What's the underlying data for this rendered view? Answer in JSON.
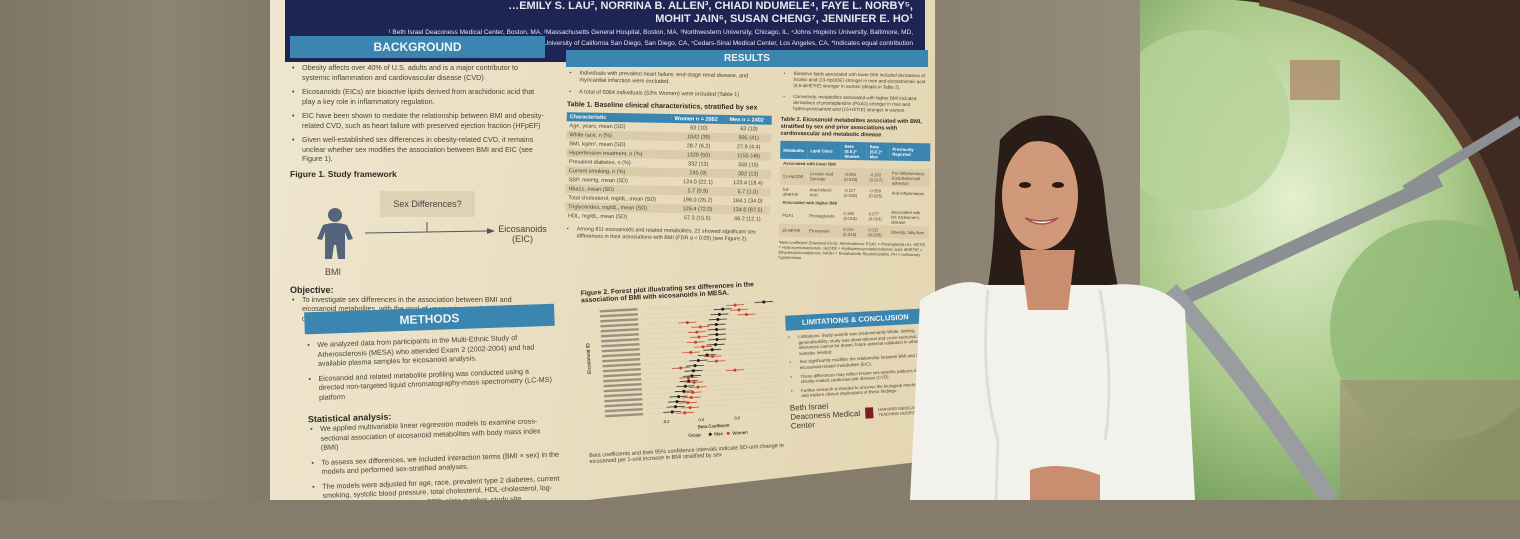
{
  "header": {
    "authors_line1": "…EMILY S. LAU², NORRINA B. ALLEN³, CHIADI NDUMELE⁴, FAYE L. NORBY⁵,",
    "authors_line2": "MOHIT JAIN⁶, SUSAN CHENG⁷, JENNIFER E. HO¹",
    "affil1": "¹ Beth Israel Deaconess Medical Center, Boston, MA, ²Massachusetts General Hospital, Boston, MA, ³Northwestern University, Chicago, IL, ⁴Johns Hopkins University, Baltimore, MD,",
    "affil2": "⁵University of Minnesota, Minneapolis, MN, ⁶University of California San Diego, San Diego, CA, ⁷Cedars-Sinai Medical Center, Los Angeles, CA, *Indicates equal contribution"
  },
  "background": {
    "title": "BACKGROUND",
    "bullets": [
      "Obesity affects over 40% of U.S. adults and is a major contributor to systemic inflammation and cardiovascular disease (CVD)",
      "Eicosanoids (EICs) are bioactive lipids derived from arachidonic acid that play a key role in inflammatory regulation.",
      "EIC have been shown to mediate the relationship between BMI and obesity-related CVD, such as heart failure with preserved ejection fraction (HFpEF)",
      "Given well-established sex differences in obesity-related CVD, it remains unclear whether sex modifies the association between BMI and EIC (see Figure 1)."
    ],
    "figure1_title": "Figure 1. Study framework",
    "figure1_box": "Sex Differences?",
    "figure1_left": "BMI",
    "figure1_right": "Eicosanoids (EIC)",
    "objective_title": "Objective:",
    "objective": "To investigate sex differences in the association between BMI and eicosanoid metabolites, with the goal of uncovering mechanisms driving clinical sex differences observed in obesity-associated CVD"
  },
  "methods": {
    "title": "METHODS",
    "bullets": [
      "We analyzed data from participants in the Multi-Ethnic Study of Atherosclerosis (MESA) who attended Exam 2 (2002-2004) and had available plasma samples for eicosanoid analysis.",
      "Eicosanoid and related metabolite profiling was conducted using a directed non-targeted liquid chromatography-mass spectrometry (LC-MS) platform"
    ],
    "stats_title": "Statistical analysis:",
    "stats_bullets": [
      "We applied multivariable linear regression models to examine cross-sectional association of eicosanoid metabolites with body mass index (BMI)",
      "To assess sex differences, we included interaction terms (BMI × sex) in the models and performed sex-stratified analyses.",
      "The models were adjusted for age, race, prevalent type 2 diabetes, current smoking, systolic blood pressure, total cholesterol, HDL-cholesterol, log-transformed triglyceride levels, eGFR, plate number, study site, hypertension medication use, and statin use",
      "…considered significant at FDR q-value"
    ]
  },
  "results": {
    "title": "RESULTS",
    "bullets": [
      "Individuals with prevalent heart failure, end-stage renal disease, and myocardial infarction were excluded.",
      "A total of 5064 individuals (53% Women) were included (Table 1)"
    ],
    "table1_title": "Table 1. Baseline clinical characteristics, stratified by sex",
    "table1_headers": [
      "Characteristic",
      "Women n = 2662",
      "Men n = 2402"
    ],
    "table1_rows": [
      [
        "Age, years, mean (SD)",
        "63 (10)",
        "63 (10)"
      ],
      [
        "White race, n (%)",
        "1042 (39)",
        "995 (41)"
      ],
      [
        "BMI, kg/m², mean (SD)",
        "28.7 (6.2)",
        "27.9 (4.4)"
      ],
      [
        "Hypertension treatment, n (%)",
        "1320 (50)",
        "1155 (48)"
      ],
      [
        "Prevalent diabetes, n (%)",
        "332 (13)",
        "358 (15)"
      ],
      [
        "Current smoking, n (%)",
        "245 (9)",
        "302 (13)"
      ],
      [
        "SBP, mmHg, mean (SD)",
        "124.0 (22.1)",
        "123.4 (18.4)"
      ],
      [
        "Hba1c, mean (SD)",
        "5.7 (0.9)",
        "5.7 (1.0)"
      ],
      [
        "Total cholesterol, mg/dL, mean (SD)",
        "198.0 (35.2)",
        "184.1 (34.0)"
      ],
      [
        "Triglycerides, mg/dL, mean (SD)",
        "126.4 (72.0)",
        "134.0 (87.5)"
      ],
      [
        "HDL, mg/dL, mean (SD)",
        "57.3 (15.5)",
        "46.2 (12.1)"
      ]
    ],
    "among": "Among 811 eicosanoids and related metabolites, 22 showed significant sex differences in their associations with BMI (FDR q < 0.05) (see Figure 2).",
    "figure2_title": "Figure 2. Forest plot illustrating sex differences in the association of BMI with eicosanoids in MESA.",
    "figure2_ylabel": "Eicosanoid ID",
    "figure2_xlabel": "Beta Coefficient",
    "figure2_legend": [
      "Group",
      "Men",
      "Women"
    ],
    "figure2_ticks": [
      "-0.2",
      "0.0",
      "0.2"
    ],
    "forest_men": [
      0.38,
      0.15,
      0.13,
      0.12,
      0.11,
      0.11,
      0.11,
      0.11,
      0.1,
      0.08,
      0.05,
      0.0,
      -0.02,
      -0.03,
      -0.04,
      -0.06,
      -0.08,
      -0.09,
      -0.12,
      -0.13,
      -0.14,
      -0.16
    ],
    "forest_women": [
      0.22,
      0.24,
      0.28,
      -0.05,
      0.02,
      0.0,
      0.01,
      -0.01,
      0.03,
      -0.04,
      0.08,
      0.1,
      -0.1,
      0.2,
      -0.06,
      -0.03,
      -0.01,
      -0.04,
      -0.05,
      -0.07,
      -0.06,
      -0.09
    ],
    "men_color": "#1a1a1a",
    "women_color": "#c8402c",
    "figure2_caption": "Beta coefficients and their 95% confidence intervals indicate SD-unit change in eicosanoid per 1-unit increase in BMI stratified by sex"
  },
  "right": {
    "bullets": [
      "Bioactive lipids associated with lower BMI included derivatives of linoleic acid (13-HpODE) stronger in men and eicosatrienoic acid (5,6-diHETrE) stronger in women (details in Table 2).",
      "Conversely, metabolites associated with higher BMI included derivatives of prostaglandins (PGA1) stronger in men and hydroxyeicosanoid acid (15-HETrE) stronger in women."
    ],
    "table2_title": "Table 2. Eicosanoid metabolites associated with BMI, stratified by sex and prior associations with cardiovascular and metabolic disease",
    "table2_headers": [
      "Metabolite",
      "Lipid Class",
      "Beta (S.E.)* Women",
      "Beta (S.E.)* Men",
      "Previously Reported"
    ],
    "group_lower": "Associated with lower BMI",
    "group_higher": "Associated with higher BMI",
    "table2_lower": [
      [
        "13-HpODE",
        "Linoleic Acid Derivate",
        "-0.050 (0.018)",
        "-0.202 (0.027)",
        "Pro-inflammatory; Endothelial cell adhesion"
      ],
      [
        "5,6-diHETrE",
        "Arachidonic Acid",
        "-0.117 (0.018)",
        "-0.059 (0.025)",
        "Anti-inflammatory"
      ]
    ],
    "table2_higher": [
      [
        "PGA1",
        "Prostaglandin",
        "0.188 (0.018)",
        "0.277 (0.024)",
        "Associated with MI; Alzheimer's disease"
      ],
      [
        "15-HETrE",
        "Eicosanoid",
        "0.210 (0.018)",
        "0.111 (0.025)",
        "Obesity; fatty liver"
      ]
    ],
    "footnote": "*Beta coefficient (Standard Error). Abbreviations: PGA1 = Prostaglandin A1, HETrE = Hydroxyeicosatrienoic, HpODE = Hydroperoxyoctadecadienoic acid, diHETrE = Dihydroxyeicosatrienoic, NASH = Nonalcoholic Steatohepatitis, PH = pulmonary hypertension",
    "limitations_title": "LIMITATIONS & CONCLUSION",
    "limitations": [
      "Limitations: Study sample was predominantly White, limiting generalizability; study was observational and cross-sectional, and inferences cannot be drawn; future external validation in other samples needed.",
      "Sex significantly modifies the relationship between BMI and 22 eicosanoid-related metabolites (EIC).",
      "These differences may reflect known sex-specific patterns in obesity-related cardiovascular disease (CVD).",
      "Further research is needed to uncover the biological mechanisms and explore clinical implications of these findings."
    ],
    "logo1": "Beth Israel Deaconess Medical Center",
    "logo2": "HARVARD MEDICAL TEACHING HOSPITAL"
  }
}
